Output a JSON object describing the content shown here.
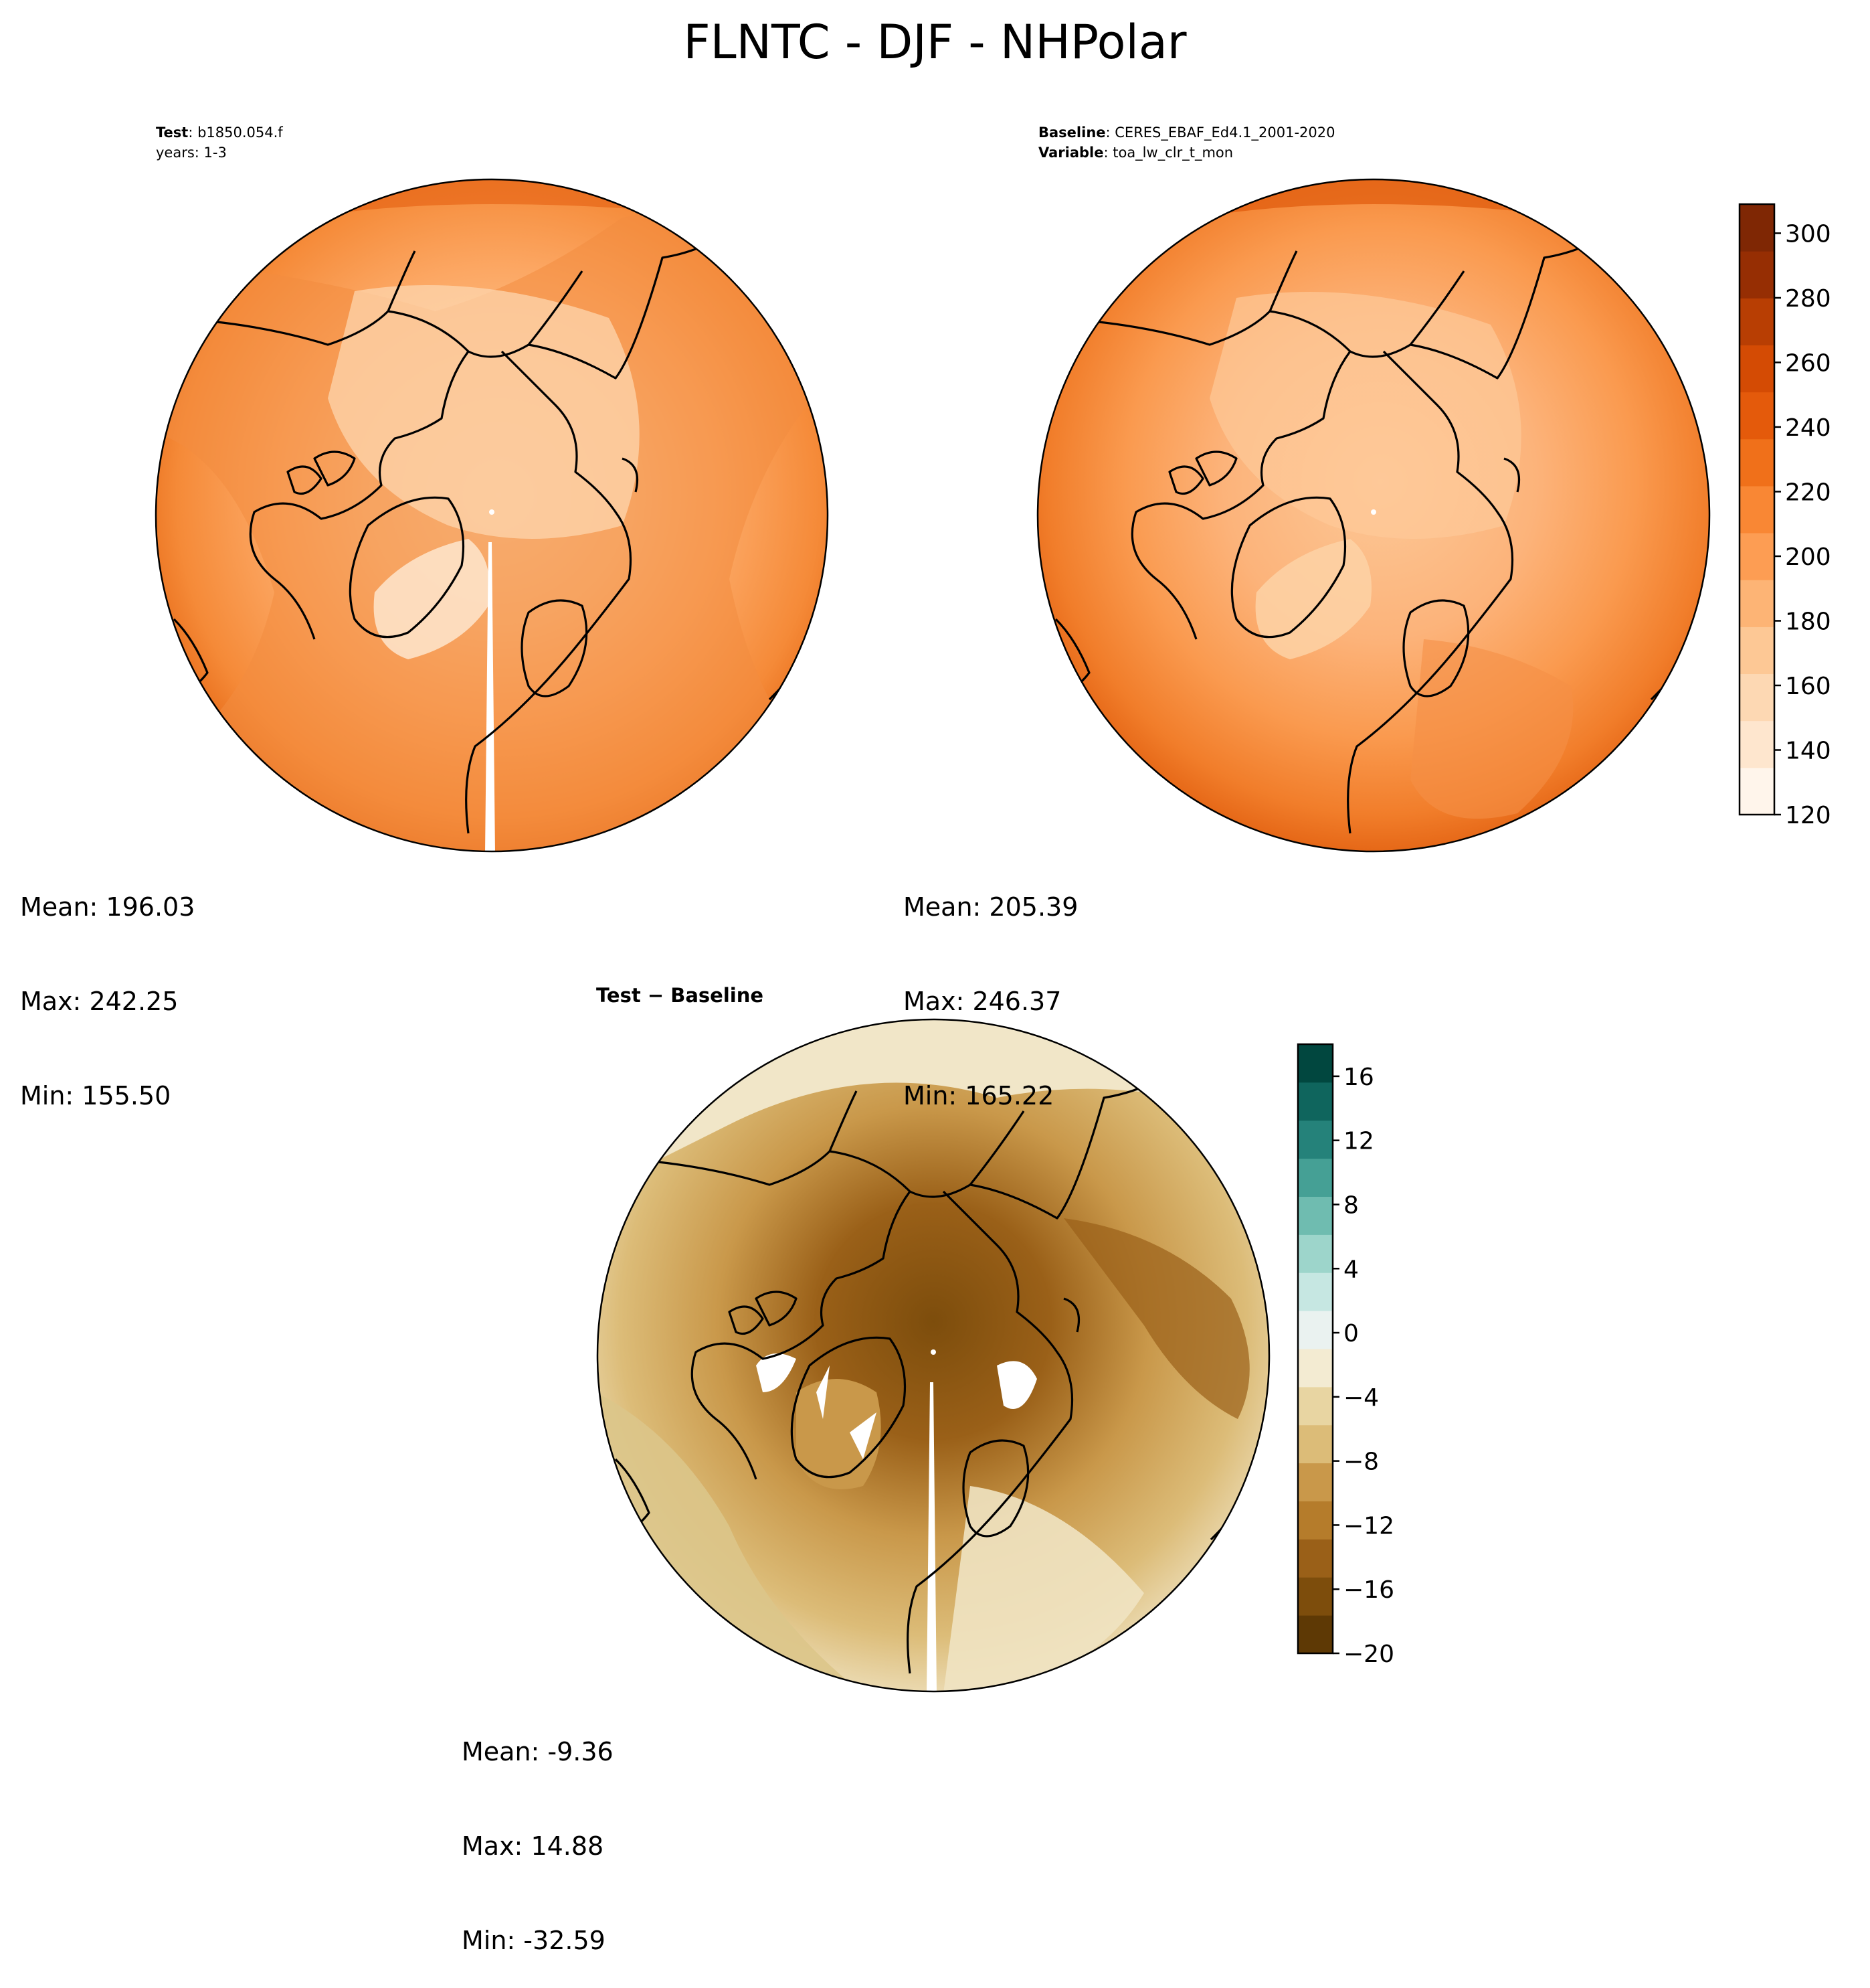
{
  "page": {
    "title": "FLNTC - DJF - NHPolar"
  },
  "panels": {
    "test": {
      "label_key": "Test",
      "label_value": ": b1850.054.f",
      "years": "years: 1-3",
      "mean": "Mean: 196.03",
      "max": "Max: 242.25",
      "min": "Min: 155.50"
    },
    "baseline": {
      "label_key": "Baseline",
      "label_value": ": CERES_EBAF_Ed4.1_2001-2020",
      "variable_key": "Variable",
      "variable_value": ": toa_lw_clr_t_mon",
      "mean": "Mean: 205.39",
      "max": "Max: 246.37",
      "min": "Min: 165.22"
    },
    "diff": {
      "title": "Test − Baseline",
      "mean": "Mean: -9.36",
      "max": "Max: 14.88",
      "min": "Min: -32.59"
    }
  },
  "colorbars": {
    "main": {
      "ticks": [
        "120",
        "140",
        "160",
        "180",
        "200",
        "220",
        "240",
        "260",
        "280",
        "300"
      ],
      "colors": [
        "#fff5eb",
        "#fee6ce",
        "#fdd8b3",
        "#fdc895",
        "#fdb475",
        "#fd9d53",
        "#f98734",
        "#f0701a",
        "#e45a0b",
        "#d44b04",
        "#b83e03",
        "#962e03",
        "#7f2704"
      ]
    },
    "diff": {
      "ticks": [
        "−20",
        "−16",
        "−12",
        "−8",
        "−4",
        "0",
        "4",
        "8",
        "12",
        "16"
      ],
      "colors": [
        "#5e3905",
        "#7d4d0c",
        "#9a6018",
        "#b57c2b",
        "#c9984a",
        "#dcbc78",
        "#e8d5a2",
        "#f3ebd2",
        "#eaf2f0",
        "#c6e7e2",
        "#9dd5cb",
        "#6fbcb0",
        "#45a095",
        "#25827a",
        "#0f655d",
        "#01473f"
      ]
    }
  }
}
